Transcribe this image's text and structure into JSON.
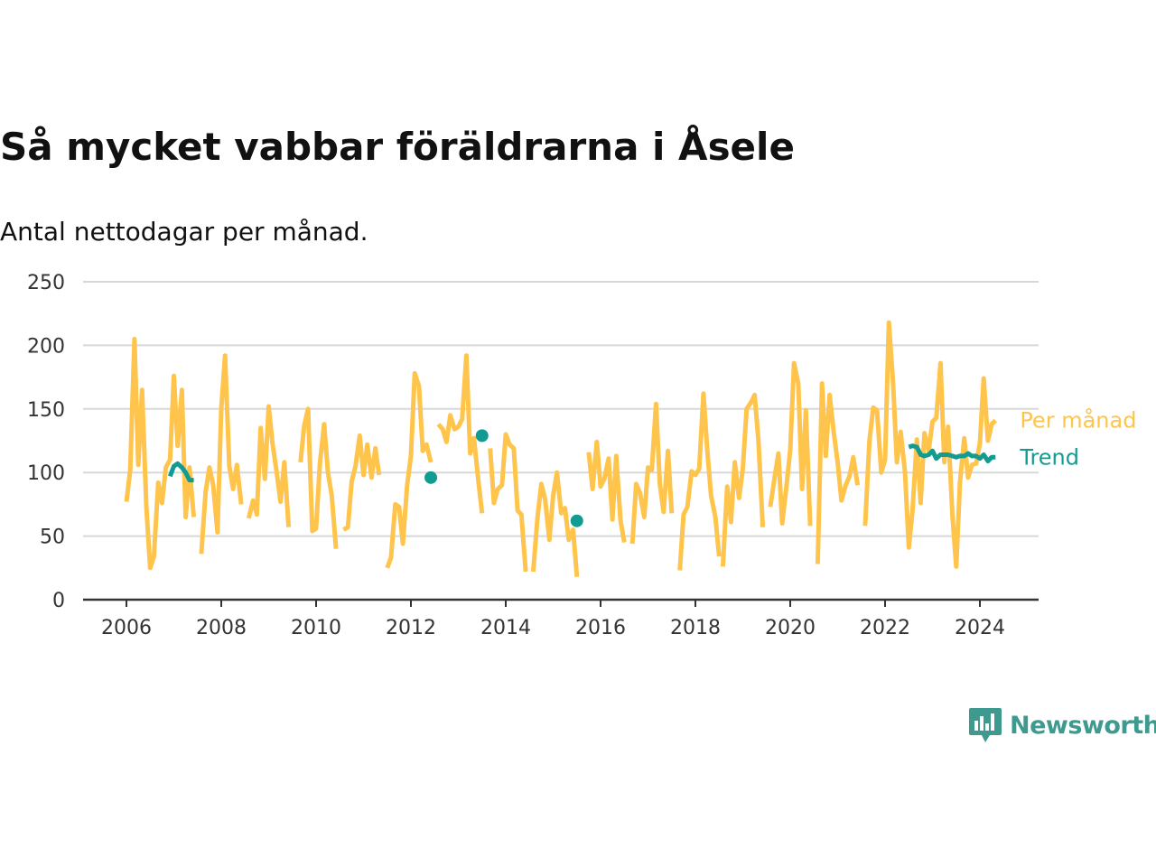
{
  "title": "Så mycket vabbar föräldrarna i Åsele",
  "subtitle": "Antal nettodagar per månad.",
  "brand": "Newsworthy",
  "colors": {
    "monthly": "#FFC44B",
    "trend": "#129C91",
    "grid": "#d8d8d8",
    "axis": "#333333",
    "brand": "#3e9a8f"
  },
  "icons": [
    "newsworthy-logo-icon"
  ],
  "chart_data": {
    "type": "line",
    "xlabel": "",
    "ylabel": "",
    "xlim": [
      2005.9,
      2025.2
    ],
    "ylim": [
      0,
      250
    ],
    "yticks": [
      0,
      50,
      100,
      150,
      200,
      250
    ],
    "xticks": [
      2006,
      2008,
      2010,
      2012,
      2014,
      2016,
      2018,
      2020,
      2022,
      2024
    ],
    "grid": true,
    "legend": "direct labels at line ends",
    "series": [
      {
        "name": "Per månad",
        "color": "#FFC44B",
        "segments": [
          [
            [
              2006.0,
              77
            ],
            [
              2006.08,
              102
            ],
            [
              2006.17,
              205
            ],
            [
              2006.25,
              106
            ],
            [
              2006.33,
              165
            ],
            [
              2006.42,
              72
            ],
            [
              2006.5,
              25
            ],
            [
              2006.58,
              34
            ],
            [
              2006.67,
              92
            ],
            [
              2006.75,
              76
            ],
            [
              2006.83,
              104
            ],
            [
              2006.92,
              110
            ],
            [
              2007.0,
              176
            ],
            [
              2007.08,
              121
            ],
            [
              2007.17,
              165
            ],
            [
              2007.25,
              65
            ],
            [
              2007.33,
              104
            ],
            [
              2007.42,
              65
            ]
          ],
          [
            [
              2007.58,
              36
            ],
            [
              2007.67,
              85
            ],
            [
              2007.75,
              104
            ],
            [
              2007.83,
              90
            ],
            [
              2007.92,
              53
            ],
            [
              2008.0,
              150
            ],
            [
              2008.08,
              192
            ],
            [
              2008.17,
              105
            ],
            [
              2008.25,
              87
            ],
            [
              2008.33,
              106
            ],
            [
              2008.42,
              75
            ]
          ],
          [
            [
              2008.58,
              64
            ],
            [
              2008.67,
              78
            ],
            [
              2008.75,
              67
            ],
            [
              2008.83,
              135
            ],
            [
              2008.92,
              95
            ],
            [
              2009.0,
              152
            ],
            [
              2009.08,
              123
            ],
            [
              2009.17,
              100
            ],
            [
              2009.25,
              77
            ],
            [
              2009.33,
              108
            ],
            [
              2009.42,
              57
            ]
          ],
          [
            [
              2009.67,
              108
            ],
            [
              2009.75,
              137
            ],
            [
              2009.83,
              150
            ],
            [
              2009.92,
              54
            ],
            [
              2010.0,
              56
            ],
            [
              2010.08,
              107
            ],
            [
              2010.17,
              138
            ],
            [
              2010.25,
              100
            ],
            [
              2010.33,
              82
            ],
            [
              2010.42,
              40
            ]
          ],
          [
            [
              2010.58,
              55
            ],
            [
              2010.67,
              57
            ],
            [
              2010.75,
              93
            ],
            [
              2010.83,
              105
            ],
            [
              2010.92,
              129
            ],
            [
              2011.0,
              98
            ],
            [
              2011.08,
              122
            ],
            [
              2011.17,
              96
            ],
            [
              2011.25,
              119
            ],
            [
              2011.33,
              98
            ]
          ],
          [
            [
              2011.5,
              25
            ],
            [
              2011.58,
              33
            ],
            [
              2011.67,
              75
            ],
            [
              2011.75,
              73
            ],
            [
              2011.83,
              44
            ],
            [
              2011.92,
              90
            ],
            [
              2012.0,
              113
            ],
            [
              2012.08,
              178
            ],
            [
              2012.17,
              168
            ],
            [
              2012.25,
              117
            ],
            [
              2012.33,
              122
            ],
            [
              2012.42,
              108
            ]
          ],
          [
            [
              2012.58,
              138
            ],
            [
              2012.67,
              134
            ],
            [
              2012.75,
              124
            ],
            [
              2012.83,
              145
            ],
            [
              2012.92,
              134
            ],
            [
              2013.0,
              136
            ],
            [
              2013.08,
              142
            ],
            [
              2013.17,
              192
            ],
            [
              2013.25,
              115
            ],
            [
              2013.33,
              127
            ],
            [
              2013.42,
              94
            ],
            [
              2013.5,
              68
            ]
          ],
          [
            [
              2013.67,
              119
            ],
            [
              2013.75,
              76
            ],
            [
              2013.83,
              87
            ],
            [
              2013.92,
              90
            ],
            [
              2014.0,
              130
            ],
            [
              2014.08,
              122
            ],
            [
              2014.17,
              119
            ],
            [
              2014.25,
              70
            ],
            [
              2014.33,
              67
            ],
            [
              2014.42,
              22
            ]
          ],
          [
            [
              2014.58,
              22
            ],
            [
              2014.67,
              65
            ],
            [
              2014.75,
              91
            ],
            [
              2014.83,
              79
            ],
            [
              2014.92,
              47
            ],
            [
              2015.0,
              82
            ],
            [
              2015.08,
              100
            ],
            [
              2015.17,
              68
            ],
            [
              2015.25,
              72
            ],
            [
              2015.33,
              47
            ],
            [
              2015.42,
              55
            ],
            [
              2015.5,
              18
            ]
          ],
          [
            [
              2015.75,
              116
            ],
            [
              2015.83,
              87
            ],
            [
              2015.92,
              124
            ],
            [
              2016.0,
              89
            ],
            [
              2016.08,
              95
            ],
            [
              2016.17,
              111
            ],
            [
              2016.25,
              63
            ],
            [
              2016.33,
              113
            ],
            [
              2016.42,
              62
            ],
            [
              2016.5,
              45
            ]
          ],
          [
            [
              2016.67,
              44
            ],
            [
              2016.75,
              91
            ],
            [
              2016.83,
              84
            ],
            [
              2016.92,
              65
            ],
            [
              2017.0,
              104
            ],
            [
              2017.08,
              102
            ],
            [
              2017.17,
              154
            ],
            [
              2017.25,
              91
            ],
            [
              2017.33,
              69
            ],
            [
              2017.42,
              117
            ],
            [
              2017.5,
              68
            ]
          ],
          [
            [
              2017.67,
              23
            ],
            [
              2017.75,
              67
            ],
            [
              2017.83,
              73
            ],
            [
              2017.92,
              101
            ],
            [
              2018.0,
              98
            ],
            [
              2018.08,
              103
            ],
            [
              2018.17,
              162
            ],
            [
              2018.25,
              118
            ],
            [
              2018.33,
              82
            ],
            [
              2018.42,
              65
            ],
            [
              2018.5,
              34
            ]
          ],
          [
            [
              2018.58,
              26
            ],
            [
              2018.67,
              89
            ],
            [
              2018.75,
              61
            ],
            [
              2018.83,
              108
            ],
            [
              2018.92,
              80
            ],
            [
              2019.0,
              103
            ],
            [
              2019.08,
              150
            ],
            [
              2019.17,
              155
            ],
            [
              2019.25,
              161
            ],
            [
              2019.33,
              125
            ],
            [
              2019.42,
              57
            ]
          ],
          [
            [
              2019.58,
              73
            ],
            [
              2019.67,
              96
            ],
            [
              2019.75,
              115
            ],
            [
              2019.83,
              60
            ],
            [
              2019.92,
              89
            ],
            [
              2020.0,
              118
            ],
            [
              2020.08,
              186
            ],
            [
              2020.17,
              170
            ],
            [
              2020.25,
              87
            ],
            [
              2020.33,
              149
            ],
            [
              2020.42,
              58
            ]
          ],
          [
            [
              2020.58,
              28
            ],
            [
              2020.67,
              170
            ],
            [
              2020.75,
              113
            ],
            [
              2020.83,
              161
            ],
            [
              2020.92,
              131
            ],
            [
              2021.0,
              108
            ],
            [
              2021.08,
              78
            ],
            [
              2021.17,
              90
            ],
            [
              2021.25,
              97
            ],
            [
              2021.33,
              112
            ],
            [
              2021.42,
              90
            ]
          ],
          [
            [
              2021.58,
              58
            ],
            [
              2021.67,
              125
            ],
            [
              2021.75,
              151
            ],
            [
              2021.83,
              149
            ],
            [
              2021.92,
              100
            ],
            [
              2022.0,
              110
            ],
            [
              2022.08,
              218
            ],
            [
              2022.17,
              170
            ],
            [
              2022.25,
              108
            ],
            [
              2022.33,
              132
            ],
            [
              2022.42,
              100
            ],
            [
              2022.5,
              41
            ],
            [
              2022.58,
              70
            ],
            [
              2022.67,
              126
            ],
            [
              2022.75,
              76
            ],
            [
              2022.83,
              131
            ],
            [
              2022.92,
              117
            ],
            [
              2023.0,
              140
            ],
            [
              2023.08,
              143
            ],
            [
              2023.17,
              186
            ],
            [
              2023.25,
              108
            ],
            [
              2023.33,
              136
            ],
            [
              2023.42,
              66
            ],
            [
              2023.5,
              26
            ],
            [
              2023.58,
              92
            ],
            [
              2023.67,
              127
            ],
            [
              2023.75,
              96
            ],
            [
              2023.83,
              106
            ],
            [
              2023.92,
              107
            ],
            [
              2024.0,
              123
            ],
            [
              2024.08,
              174
            ],
            [
              2024.17,
              125
            ],
            [
              2024.25,
              138
            ],
            [
              2024.33,
              141
            ]
          ]
        ]
      },
      {
        "name": "Trend",
        "color": "#129C91",
        "segments": [
          [
            [
              2006.92,
              97
            ],
            [
              2007.0,
              105
            ],
            [
              2007.08,
              107
            ],
            [
              2007.17,
              104
            ],
            [
              2007.25,
              100
            ],
            [
              2007.33,
              94
            ],
            [
              2007.42,
              94
            ]
          ],
          [
            [
              2012.42,
              96
            ]
          ],
          [
            [
              2013.5,
              129
            ]
          ],
          [
            [
              2015.5,
              62
            ]
          ],
          [
            [
              2022.5,
              120
            ],
            [
              2022.58,
              121
            ],
            [
              2022.67,
              120
            ],
            [
              2022.75,
              114
            ],
            [
              2022.83,
              113
            ],
            [
              2022.92,
              114
            ],
            [
              2023.0,
              117
            ],
            [
              2023.08,
              111
            ],
            [
              2023.17,
              114
            ],
            [
              2023.25,
              114
            ],
            [
              2023.33,
              114
            ],
            [
              2023.42,
              113
            ],
            [
              2023.5,
              112
            ],
            [
              2023.58,
              113
            ],
            [
              2023.67,
              113
            ],
            [
              2023.75,
              115
            ],
            [
              2023.83,
              113
            ],
            [
              2023.92,
              113
            ],
            [
              2024.0,
              111
            ],
            [
              2024.08,
              114
            ],
            [
              2024.17,
              109
            ],
            [
              2024.25,
              112
            ],
            [
              2024.33,
              112
            ]
          ]
        ]
      }
    ]
  }
}
